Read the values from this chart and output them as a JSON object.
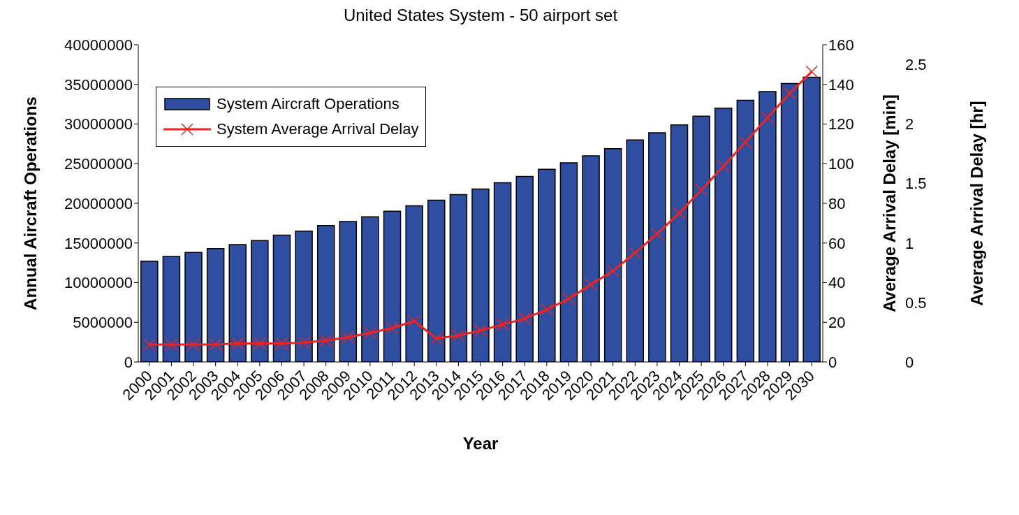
{
  "chart_data": {
    "type": "bar",
    "title": "United States System - 50 airport set",
    "xlabel": "Year",
    "ylabel": "Annual Aircraft Operations",
    "y2label": "Average Arrival Delay [min]",
    "y3label": "Average Arrival Delay [hr]",
    "categories": [
      "2000",
      "2001",
      "2002",
      "2003",
      "2004",
      "2005",
      "2006",
      "2007",
      "2008",
      "2009",
      "2010",
      "2011",
      "2012",
      "2013",
      "2014",
      "2015",
      "2016",
      "2017",
      "2018",
      "2019",
      "2020",
      "2021",
      "2022",
      "2023",
      "2024",
      "2025",
      "2026",
      "2027",
      "2028",
      "2029",
      "2030"
    ],
    "series": [
      {
        "name": "System Aircraft Operations",
        "color": "#2f4ea0",
        "values": [
          12700000,
          13300000,
          13800000,
          14300000,
          14800000,
          15300000,
          16000000,
          16500000,
          17200000,
          17700000,
          18300000,
          19000000,
          19700000,
          20400000,
          21100000,
          21800000,
          22600000,
          23400000,
          24300000,
          25100000,
          26000000,
          26900000,
          28000000,
          28900000,
          29900000,
          31000000,
          32000000,
          33000000,
          34100000,
          35100000,
          35900000
        ]
      },
      {
        "name": "System Average Arrival Delay",
        "type": "line",
        "axis": "y2",
        "color": "#ee2222",
        "marker": "cross",
        "values": [
          8.8,
          8.8,
          8.8,
          8.8,
          9.3,
          9.3,
          9.3,
          9.8,
          10.8,
          12.4,
          14.7,
          17.1,
          20.7,
          11.8,
          13.3,
          15.9,
          18.9,
          21.9,
          26.4,
          31.9,
          39.0,
          46.0,
          55.0,
          64.6,
          75.1,
          86.7,
          98.7,
          110.8,
          123.3,
          135.4,
          146.4
        ]
      }
    ],
    "ylim": [
      0,
      40000000
    ],
    "yticks": [
      0,
      5000000,
      10000000,
      15000000,
      20000000,
      25000000,
      30000000,
      35000000,
      40000000
    ],
    "y2lim": [
      0,
      160
    ],
    "y2ticks": [
      0,
      20,
      40,
      60,
      80,
      100,
      120,
      140,
      160
    ],
    "y3lim": [
      0,
      2.6667
    ],
    "y3ticks": [
      0,
      0.5,
      1,
      1.5,
      2,
      2.5
    ],
    "grid": false,
    "legend": "top left"
  }
}
